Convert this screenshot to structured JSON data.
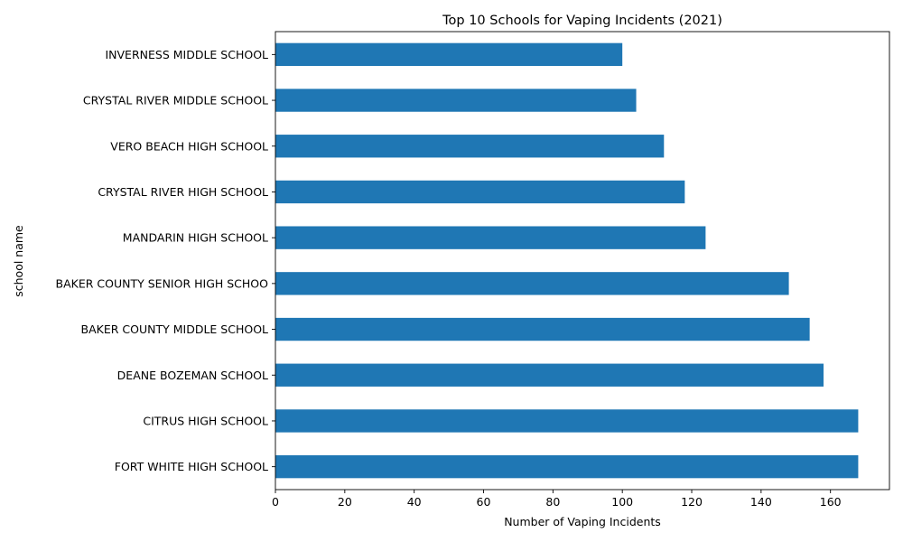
{
  "chart_data": {
    "type": "bar",
    "orientation": "horizontal",
    "title": "Top 10 Schools for Vaping Incidents (2021)",
    "xlabel": "Number of Vaping Incidents",
    "ylabel": "school name",
    "xlim": [
      0,
      177
    ],
    "xticks": [
      0,
      20,
      40,
      60,
      80,
      100,
      120,
      140,
      160
    ],
    "grid": false,
    "bar_color": "#1f77b4",
    "categories": [
      "FORT WHITE HIGH SCHOOL",
      "CITRUS HIGH SCHOOL",
      "DEANE BOZEMAN SCHOOL",
      "BAKER COUNTY MIDDLE SCHOOL",
      "BAKER COUNTY SENIOR HIGH SCHOO",
      "MANDARIN HIGH SCHOOL",
      "CRYSTAL RIVER HIGH SCHOOL",
      "VERO BEACH HIGH SCHOOL",
      "CRYSTAL RIVER MIDDLE SCHOOL",
      "INVERNESS MIDDLE SCHOOL"
    ],
    "values": [
      168,
      168,
      158,
      154,
      148,
      124,
      118,
      112,
      104,
      100
    ]
  }
}
